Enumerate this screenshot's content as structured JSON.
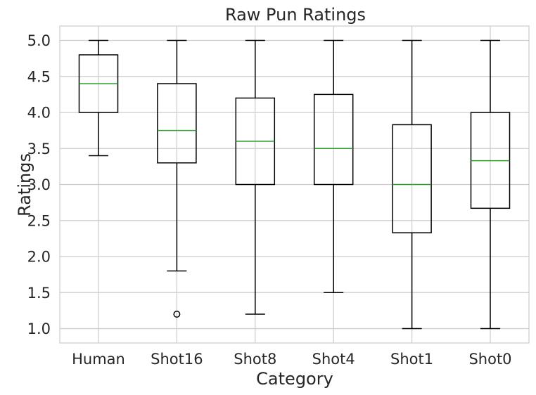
{
  "chart_data": {
    "type": "box",
    "title": "Raw Pun Ratings",
    "xlabel": "Category",
    "ylabel": "Ratings",
    "ylim": [
      0.8,
      5.2
    ],
    "yticks": [
      "1.0",
      "1.5",
      "2.0",
      "2.5",
      "3.0",
      "3.5",
      "4.0",
      "4.5",
      "5.0"
    ],
    "grid": true,
    "categories": [
      "Human",
      "Shot16",
      "Shot8",
      "Shot4",
      "Shot1",
      "Shot0"
    ],
    "boxes": [
      {
        "category": "Human",
        "whisker_low": 3.4,
        "q1": 4.0,
        "median": 4.4,
        "q3": 4.8,
        "whisker_high": 5.0,
        "outliers": []
      },
      {
        "category": "Shot16",
        "whisker_low": 1.8,
        "q1": 3.3,
        "median": 3.75,
        "q3": 4.4,
        "whisker_high": 5.0,
        "outliers": [
          1.2
        ]
      },
      {
        "category": "Shot8",
        "whisker_low": 1.2,
        "q1": 3.0,
        "median": 3.6,
        "q3": 4.2,
        "whisker_high": 5.0,
        "outliers": []
      },
      {
        "category": "Shot4",
        "whisker_low": 1.5,
        "q1": 3.0,
        "median": 3.5,
        "q3": 4.25,
        "whisker_high": 5.0,
        "outliers": []
      },
      {
        "category": "Shot1",
        "whisker_low": 1.0,
        "q1": 2.33,
        "median": 3.0,
        "q3": 3.83,
        "whisker_high": 5.0,
        "outliers": []
      },
      {
        "category": "Shot0",
        "whisker_low": 1.0,
        "q1": 2.67,
        "median": 3.33,
        "q3": 4.0,
        "whisker_high": 5.0,
        "outliers": []
      }
    ],
    "colors": {
      "box": "#000000",
      "median": "#2ca02c",
      "grid": "#cccccc",
      "frame": "#cccccc",
      "text": "#262626"
    }
  }
}
